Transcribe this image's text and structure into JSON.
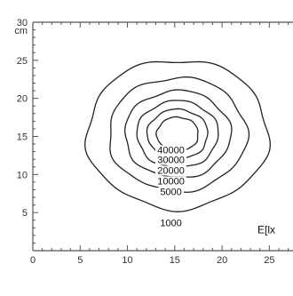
{
  "chart_data": {
    "type": "contour",
    "title": "",
    "xlabel": "",
    "ylabel": "cm",
    "xlim": [
      0,
      27.5
    ],
    "ylim": [
      0,
      30
    ],
    "x_ticks": [
      0,
      5,
      10,
      15,
      20,
      25
    ],
    "y_ticks": [
      5,
      10,
      15,
      20,
      25,
      30
    ],
    "center": {
      "x": 15.3,
      "y": 15.3
    },
    "quantity_label": "E[lx",
    "contours": [
      {
        "level": 1000,
        "label": "1000",
        "radius": 9.6
      },
      {
        "level": 5000,
        "label": "5000",
        "radius": 7.3
      },
      {
        "level": 10000,
        "label": "10000",
        "radius": 5.6
      },
      {
        "level": 20000,
        "label": "20000",
        "radius": 4.3
      },
      {
        "level": 30000,
        "label": "30000",
        "radius": 3.2
      },
      {
        "level": 40000,
        "label": "40000",
        "radius": 2.2
      }
    ],
    "label_positions": [
      {
        "label": "1000",
        "x": 14.6,
        "y": 3.2
      },
      {
        "label": "5000",
        "x": 14.6,
        "y": 7.3
      },
      {
        "label": "10000",
        "x": 14.6,
        "y": 8.7
      },
      {
        "label": "20000",
        "x": 14.6,
        "y": 10.1
      },
      {
        "label": "30000",
        "x": 14.6,
        "y": 11.5
      },
      {
        "label": "40000",
        "x": 14.6,
        "y": 12.8
      }
    ]
  }
}
